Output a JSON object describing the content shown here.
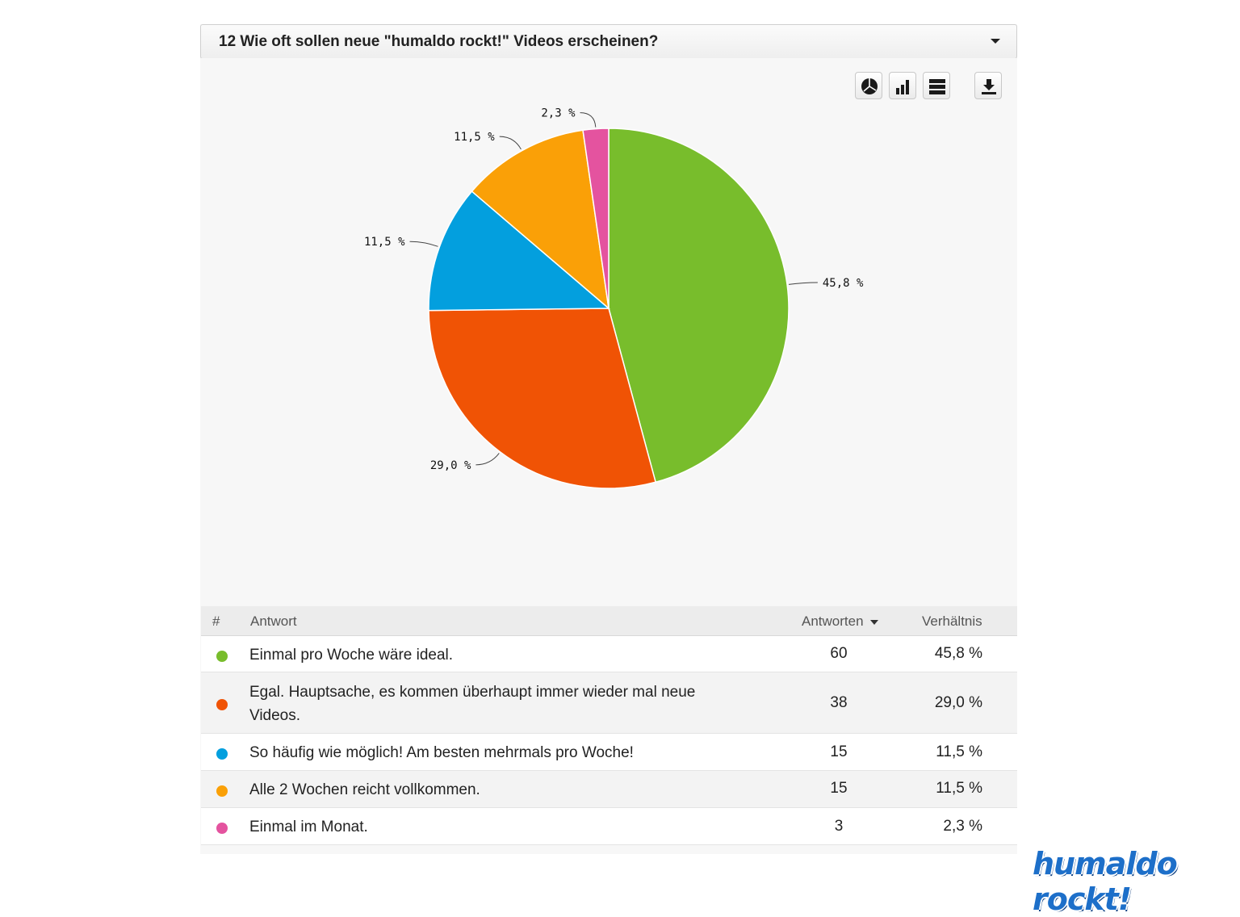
{
  "question": {
    "title": "12 Wie oft sollen neue \"humaldo rockt!\" Videos erscheinen?"
  },
  "toolbar": {
    "icons": [
      "pie-chart-icon",
      "bar-chart-icon",
      "table-view-icon",
      "download-icon"
    ]
  },
  "chart_data": {
    "type": "pie",
    "categories": [
      "Einmal pro Woche wäre ideal.",
      "Egal. Hauptsache, es kommen überhaupt immer wieder mal neue Videos.",
      "So häufig wie möglich! Am besten mehrmals pro Woche!",
      "Alle 2 Wochen reicht vollkommen.",
      "Einmal im Monat."
    ],
    "values": [
      60,
      38,
      15,
      15,
      3
    ],
    "labels": [
      "45,8 %",
      "29,0 %",
      "11,5 %",
      "11,5 %",
      "2,3 %"
    ],
    "colors": [
      "#78bd2c",
      "#f05305",
      "#039fde",
      "#faa007",
      "#e4539f"
    ]
  },
  "table": {
    "headers": {
      "num": "#",
      "answer": "Antwort",
      "count": "Antworten",
      "ratio": "Verhältnis"
    },
    "rows": [
      {
        "answer_line1": "Einmal pro Woche wäre ideal.",
        "answer_line2": "",
        "count": "60",
        "ratio": "45,8 %",
        "color": "#78bd2c"
      },
      {
        "answer_line1": "Egal. Hauptsache, es kommen überhaupt immer wieder mal neue",
        "answer_line2": "Videos.",
        "count": "38",
        "ratio": "29,0 %",
        "color": "#f05305"
      },
      {
        "answer_line1": "So häufig wie möglich! Am besten mehrmals pro Woche!",
        "answer_line2": "",
        "count": "15",
        "ratio": "11,5 %",
        "color": "#039fde"
      },
      {
        "answer_line1": "Alle 2 Wochen reicht vollkommen.",
        "answer_line2": "",
        "count": "15",
        "ratio": "11,5 %",
        "color": "#faa007"
      },
      {
        "answer_line1": "Einmal im Monat.",
        "answer_line2": "",
        "count": "3",
        "ratio": "2,3 %",
        "color": "#e4539f"
      }
    ]
  },
  "logo": {
    "text": "humaldo rockt!"
  }
}
